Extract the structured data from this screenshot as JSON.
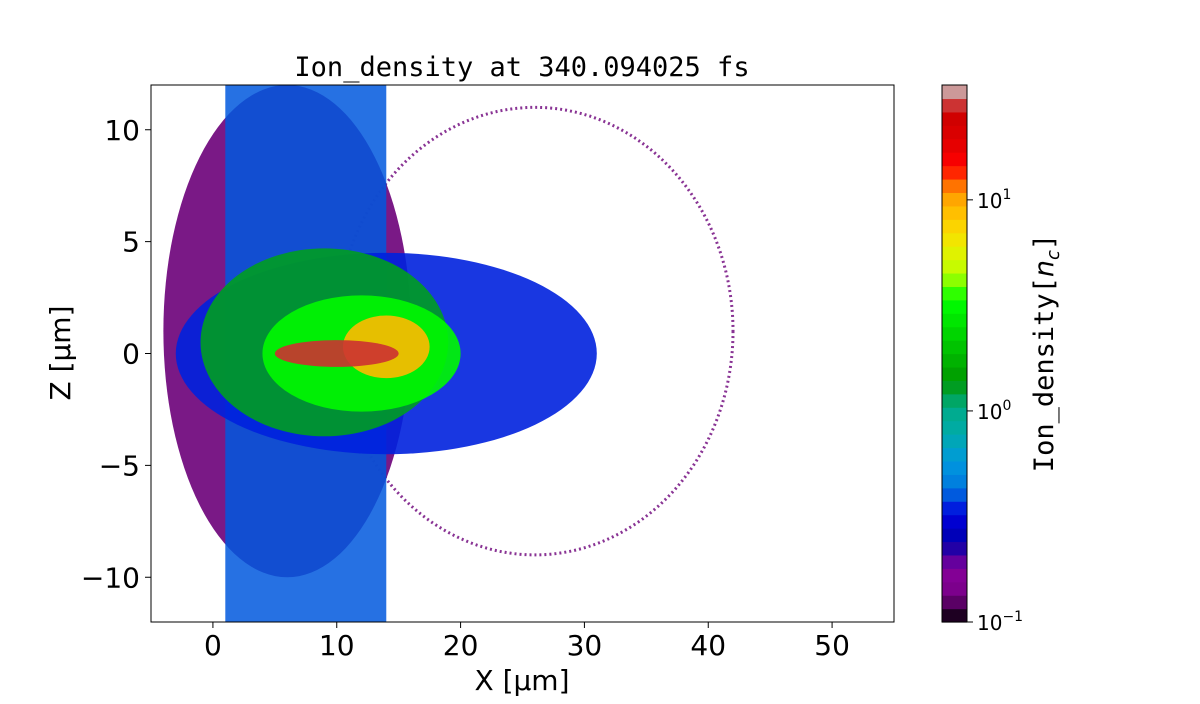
{
  "chart_data": {
    "type": "heatmap",
    "title": "Ion_density at 340.094025 fs",
    "xlabel": "X [μm]",
    "ylabel": "Z [μm]",
    "xlim": [
      -5,
      55
    ],
    "ylim": [
      -12,
      12
    ],
    "x_ticks": [
      0,
      10,
      20,
      30,
      40,
      50
    ],
    "y_ticks": [
      -10,
      -5,
      0,
      5,
      10
    ],
    "y_tick_labels": [
      "−10",
      "−5",
      "0",
      "5",
      "10"
    ],
    "colorbar": {
      "label": "Ion_density[n_c]",
      "label_main": "Ion_density[",
      "label_sym": "n",
      "label_sub": "c",
      "label_close": "]",
      "scale": "log",
      "range": [
        0.1,
        35
      ],
      "ticks": [
        0.1,
        1,
        10
      ],
      "tick_bases": [
        "10",
        "10",
        "10"
      ],
      "tick_exponents": [
        "−1",
        "0",
        "1"
      ],
      "colormap": "nipy_spectral",
      "levels": 40
    },
    "regions": [
      {
        "shape": "ellipse",
        "cx": 6,
        "cy": 1,
        "rx": 10,
        "ry": 11,
        "value": 0.13
      },
      {
        "shape": "rect",
        "x0": 1,
        "x1": 14,
        "y0": -12,
        "y1": 12,
        "value": 0.4
      },
      {
        "shape": "ellipse",
        "cx": 14,
        "cy": 0,
        "rx": 17,
        "ry": 4.5,
        "value": 0.35
      },
      {
        "shape": "ellipse",
        "cx": 9,
        "cy": 0.5,
        "rx": 10,
        "ry": 4.2,
        "value": 1.3
      },
      {
        "shape": "ellipse",
        "cx": 12,
        "cy": 0,
        "rx": 8,
        "ry": 2.6,
        "value": 3.2
      },
      {
        "shape": "ellipse",
        "cx": 14,
        "cy": 0.3,
        "rx": 3.5,
        "ry": 1.4,
        "value": 9
      },
      {
        "shape": "ellipse",
        "cx": 10,
        "cy": 0,
        "rx": 5,
        "ry": 0.6,
        "value": 28
      }
    ],
    "shell": {
      "cx": 26,
      "cy": 1,
      "rx": 16,
      "ry": 10,
      "value": 0.13
    }
  }
}
